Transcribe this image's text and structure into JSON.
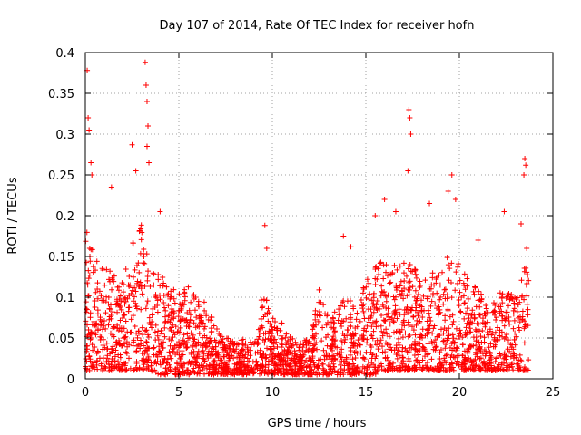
{
  "chart_data": {
    "type": "scatter",
    "title": "Day 107 of 2014, Rate Of TEC Index for receiver hofn",
    "xlabel": "GPS time / hours",
    "ylabel": "ROTI / TECUs",
    "xlim": [
      0,
      25
    ],
    "ylim": [
      0,
      0.4
    ],
    "x_ticks": [
      0,
      5,
      10,
      15,
      20,
      25
    ],
    "x_tick_labels": [
      "0",
      "5",
      "10",
      "15",
      "20",
      "25"
    ],
    "y_ticks": [
      0,
      0.05,
      0.1,
      0.15,
      0.2,
      0.25,
      0.3,
      0.35,
      0.4
    ],
    "y_tick_labels": [
      "0",
      "0.05",
      "0.1",
      "0.15",
      "0.2",
      "0.25",
      "0.3",
      "0.35",
      "0.4"
    ],
    "grid": true,
    "marker": "plus",
    "color": "#ff0000",
    "x_data_range": [
      0,
      23.7
    ],
    "notable_points": [
      {
        "x": 0.1,
        "y": 0.378
      },
      {
        "x": 0.15,
        "y": 0.32
      },
      {
        "x": 0.2,
        "y": 0.305
      },
      {
        "x": 0.3,
        "y": 0.265
      },
      {
        "x": 0.35,
        "y": 0.25
      },
      {
        "x": 1.4,
        "y": 0.235
      },
      {
        "x": 2.5,
        "y": 0.287
      },
      {
        "x": 2.7,
        "y": 0.255
      },
      {
        "x": 3.2,
        "y": 0.388
      },
      {
        "x": 3.25,
        "y": 0.36
      },
      {
        "x": 3.3,
        "y": 0.34
      },
      {
        "x": 3.35,
        "y": 0.31
      },
      {
        "x": 3.3,
        "y": 0.285
      },
      {
        "x": 3.4,
        "y": 0.265
      },
      {
        "x": 4.0,
        "y": 0.205
      },
      {
        "x": 9.6,
        "y": 0.188
      },
      {
        "x": 9.7,
        "y": 0.16
      },
      {
        "x": 13.8,
        "y": 0.175
      },
      {
        "x": 14.2,
        "y": 0.162
      },
      {
        "x": 15.5,
        "y": 0.2
      },
      {
        "x": 16.0,
        "y": 0.22
      },
      {
        "x": 16.6,
        "y": 0.205
      },
      {
        "x": 17.3,
        "y": 0.33
      },
      {
        "x": 17.35,
        "y": 0.32
      },
      {
        "x": 17.4,
        "y": 0.3
      },
      {
        "x": 17.25,
        "y": 0.255
      },
      {
        "x": 18.4,
        "y": 0.215
      },
      {
        "x": 19.4,
        "y": 0.23
      },
      {
        "x": 19.6,
        "y": 0.25
      },
      {
        "x": 19.8,
        "y": 0.22
      },
      {
        "x": 21.0,
        "y": 0.17
      },
      {
        "x": 22.4,
        "y": 0.205
      },
      {
        "x": 23.5,
        "y": 0.27
      },
      {
        "x": 23.55,
        "y": 0.262
      },
      {
        "x": 23.45,
        "y": 0.25
      },
      {
        "x": 23.3,
        "y": 0.19
      },
      {
        "x": 23.6,
        "y": 0.16
      }
    ],
    "envelope": {
      "hours": [
        0,
        0.5,
        1,
        1.5,
        2,
        2.5,
        3,
        3.5,
        4,
        4.5,
        5,
        5.5,
        6,
        6.5,
        7,
        7.5,
        8,
        8.5,
        9,
        9.5,
        10,
        10.5,
        11,
        11.5,
        12,
        12.5,
        13,
        13.5,
        14,
        14.5,
        15,
        15.5,
        16,
        16.5,
        17,
        17.5,
        18,
        18.5,
        19,
        19.5,
        20,
        20.5,
        21,
        21.5,
        22,
        22.5,
        23,
        23.5
      ],
      "typical_max": [
        0.19,
        0.15,
        0.14,
        0.13,
        0.12,
        0.17,
        0.19,
        0.15,
        0.13,
        0.11,
        0.11,
        0.12,
        0.11,
        0.09,
        0.07,
        0.05,
        0.05,
        0.05,
        0.045,
        0.11,
        0.08,
        0.07,
        0.05,
        0.045,
        0.05,
        0.11,
        0.08,
        0.09,
        0.1,
        0.09,
        0.12,
        0.14,
        0.15,
        0.14,
        0.15,
        0.14,
        0.12,
        0.13,
        0.13,
        0.16,
        0.14,
        0.12,
        0.11,
        0.1,
        0.1,
        0.12,
        0.1,
        0.14
      ],
      "typical_min": [
        0.01,
        0.01,
        0.01,
        0.01,
        0.01,
        0.01,
        0.01,
        0.01,
        0.005,
        0.005,
        0.005,
        0.005,
        0.005,
        0.005,
        0.005,
        0.005,
        0.005,
        0.005,
        0.005,
        0.005,
        0.005,
        0.005,
        0.005,
        0.005,
        0.005,
        0.005,
        0.005,
        0.005,
        0.005,
        0.005,
        0.005,
        0.005,
        0.01,
        0.01,
        0.01,
        0.01,
        0.01,
        0.01,
        0.01,
        0.01,
        0.01,
        0.01,
        0.01,
        0.01,
        0.01,
        0.01,
        0.01,
        0.01
      ]
    }
  }
}
